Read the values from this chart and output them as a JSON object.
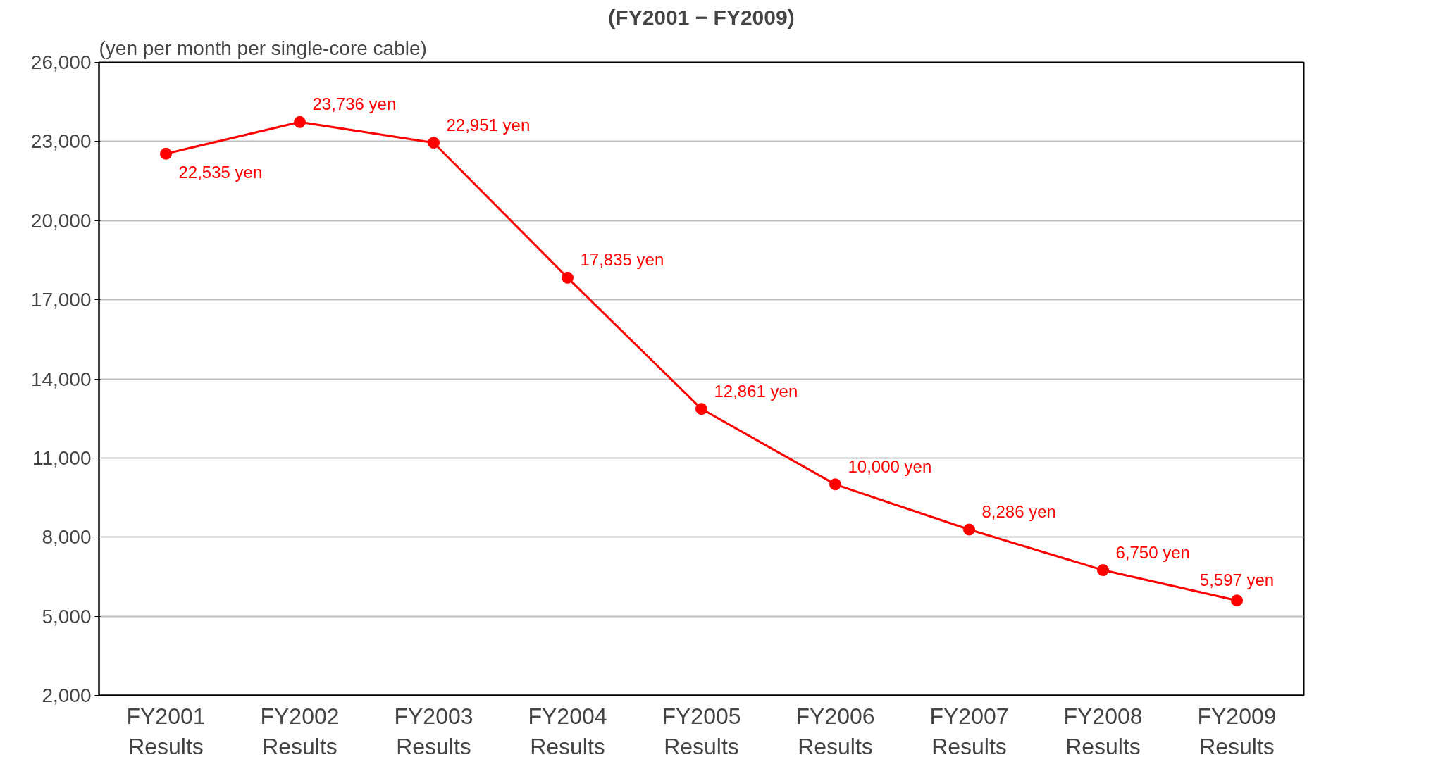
{
  "chart_data": {
    "type": "line",
    "title": "(FY2001 − FY2009)",
    "ylabel": "(yen per month per single-core cable)",
    "categories": [
      "FY2001\nResults",
      "FY2002\nResults",
      "FY2003\nResults",
      "FY2004\nResults",
      "FY2005\nResults",
      "FY2006\nResults",
      "FY2007\nResults",
      "FY2008\nResults",
      "FY2009\nResults"
    ],
    "series": [
      {
        "color": "#ff0000",
        "values": [
          22535,
          23736,
          22951,
          17835,
          12861,
          10000,
          8286,
          6750,
          5597
        ],
        "value_labels": [
          "22,535 yen",
          "23,736 yen",
          "22,951 yen",
          "17,835 yen",
          "12,861 yen",
          "10,000 yen",
          "8,286 yen",
          "6,750 yen",
          "5,597 yen"
        ]
      }
    ],
    "ylim": [
      2000,
      26000
    ],
    "yticks": [
      {
        "value": 2000,
        "label": "2,000"
      },
      {
        "value": 5000,
        "label": "5,000"
      },
      {
        "value": 8000,
        "label": "8,000"
      },
      {
        "value": 11000,
        "label": "11,000"
      },
      {
        "value": 14000,
        "label": "14,000"
      },
      {
        "value": 17000,
        "label": "17,000"
      },
      {
        "value": 20000,
        "label": "20,000"
      },
      {
        "value": 23000,
        "label": "23,000"
      },
      {
        "value": 26000,
        "label": "26,000"
      }
    ],
    "grid": "y",
    "marker": "circle",
    "line_style": "solid"
  }
}
